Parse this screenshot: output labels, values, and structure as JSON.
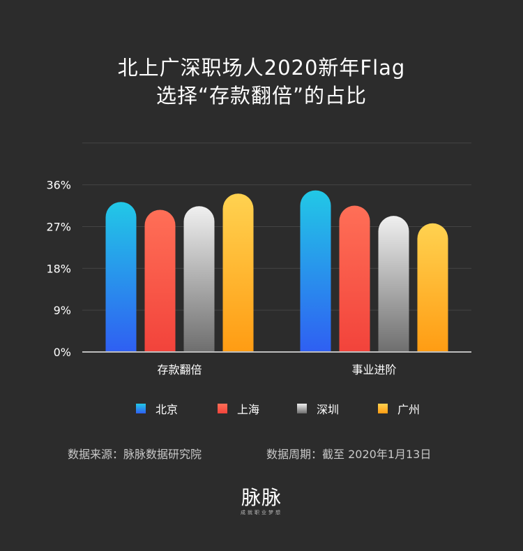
{
  "title_line1": "北上广深职场人2020新年Flag",
  "title_line2": "选择“存款翻倍”的占比",
  "chart_data": {
    "type": "bar",
    "categories": [
      "存款翻倍",
      "事业进阶"
    ],
    "series": [
      {
        "name": "北京",
        "values": [
          32.3,
          34.8
        ],
        "color_top": "#22c8e6",
        "color_bottom": "#2f5ff2"
      },
      {
        "name": "上海",
        "values": [
          30.6,
          31.5
        ],
        "color_top": "#ff6f57",
        "color_bottom": "#f2433b"
      },
      {
        "name": "深圳",
        "values": [
          31.4,
          29.3
        ],
        "color_top": "#f0f0f0",
        "color_bottom": "#6e6e6e"
      },
      {
        "name": "广州",
        "values": [
          34.1,
          27.7
        ],
        "color_top": "#ffd250",
        "color_bottom": "#ff9c13"
      }
    ],
    "yticks": [
      "0%",
      "9%",
      "18%",
      "27%",
      "36%"
    ],
    "ytick_values": [
      0,
      9,
      18,
      27,
      36
    ],
    "ylim": [
      0,
      45
    ],
    "grid": true,
    "legend_position": "bottom"
  },
  "footer": {
    "source": "数据来源：脉脉数据研究院",
    "period": "数据周期：截至 2020年1月13日"
  },
  "logo": {
    "name": "脉脉",
    "slogan": "成就职业梦想"
  }
}
